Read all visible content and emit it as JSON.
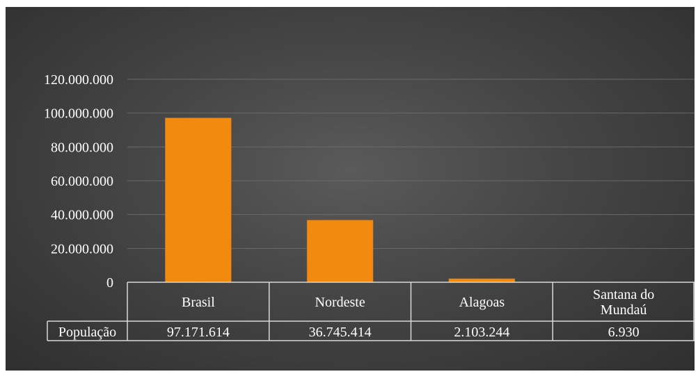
{
  "chart_data": {
    "type": "bar",
    "title": "",
    "xlabel": "",
    "ylabel": "",
    "categories": [
      "Brasil",
      "Nordeste",
      "Alagoas",
      "Santana do Mundaú"
    ],
    "series": [
      {
        "name": "População",
        "values": [
          97171614,
          36745414,
          2103244,
          6930
        ],
        "color": "#f28a10"
      }
    ],
    "ylim": [
      0,
      120000000
    ],
    "yticks": [
      0,
      20000000,
      40000000,
      60000000,
      80000000,
      100000000,
      120000000
    ],
    "ytick_labels": [
      "0",
      "20.000.000",
      "40.000.000",
      "60.000.000",
      "80.000.000",
      "100.000.000",
      "120.000.000"
    ],
    "data_table": {
      "row_label": "População",
      "values": [
        "97.171.614",
        "36.745.414",
        "2.103.244",
        "6.930"
      ]
    },
    "grid": true,
    "legend": "data-table"
  },
  "colors": {
    "background": "#3f3f3f",
    "bar": "#f28a10",
    "text": "#ffffff",
    "gridline": "#6a6a6a",
    "table_border": "#d9d9d9"
  }
}
